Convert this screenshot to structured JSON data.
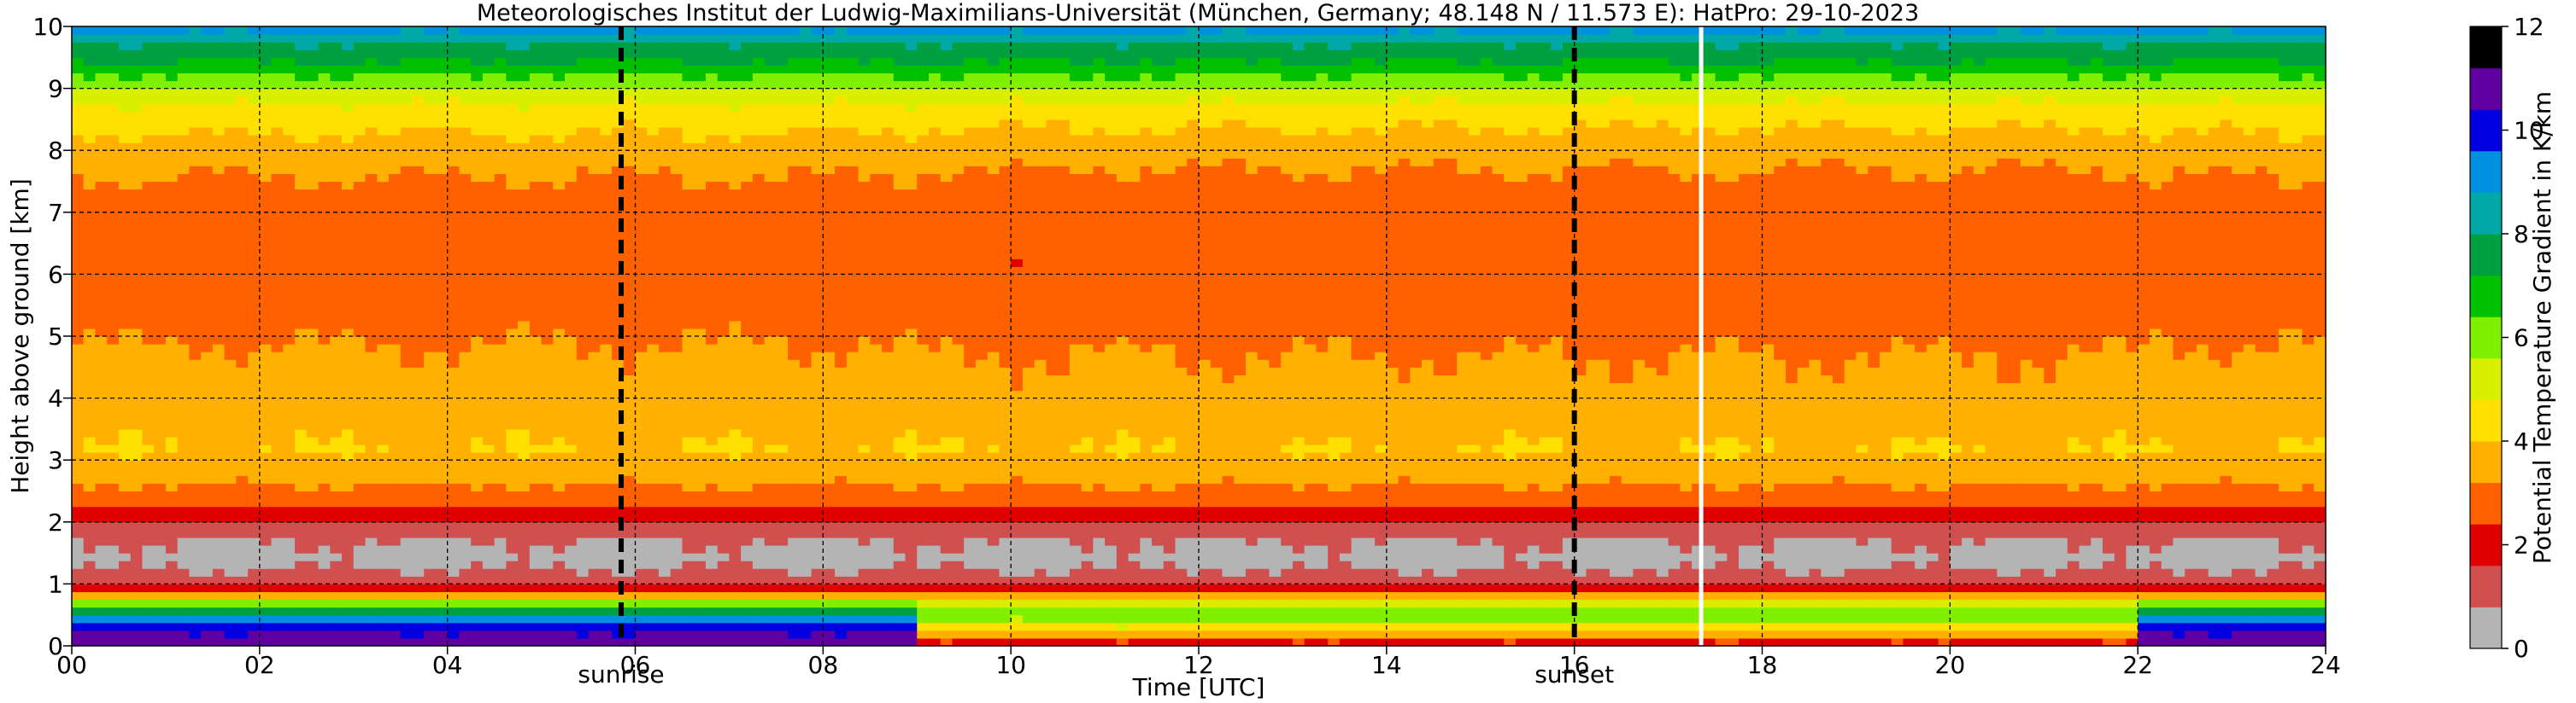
{
  "chart_data": {
    "type": "heatmap",
    "title": "Meteorologisches Institut der Ludwig-Maximilians-Universität (München, Germany; 48.148 N / 11.573 E):    HatPro: 29-10-2023",
    "xlabel": "Time [UTC]",
    "ylabel": "Height above ground [km]",
    "xlim": [
      0,
      24
    ],
    "ylim": [
      0,
      10
    ],
    "x_ticks": [
      0,
      2,
      4,
      6,
      8,
      10,
      12,
      14,
      16,
      18,
      20,
      22,
      24
    ],
    "x_tick_labels": [
      "00",
      "02",
      "04",
      "06",
      "08",
      "10",
      "12",
      "14",
      "16",
      "18",
      "20",
      "22",
      "24"
    ],
    "y_ticks": [
      0,
      1,
      2,
      3,
      4,
      5,
      6,
      7,
      8,
      9,
      10
    ],
    "y_tick_labels": [
      "0",
      "1",
      "2",
      "3",
      "4",
      "5",
      "6",
      "7",
      "8",
      "9",
      "10"
    ],
    "grid": true,
    "colorbar": {
      "label": "Potential Temperature Gradient in K/km",
      "min": 0,
      "max": 12,
      "ticks": [
        0,
        2,
        4,
        6,
        8,
        10,
        12
      ],
      "tick_labels": [
        "0",
        "2",
        "4",
        "6",
        "8",
        "10",
        "12"
      ],
      "colors": [
        "#b4b4b4",
        "#d05050",
        "#e00000",
        "#ff6000",
        "#ffb000",
        "#ffe000",
        "#d8f000",
        "#80f000",
        "#00c000",
        "#00a040",
        "#00a8a8",
        "#0090e0",
        "#0000e0",
        "#6000a0",
        "#000000"
      ]
    },
    "events": [
      {
        "name": "sunrise",
        "time": 5.85
      },
      {
        "name": "sunset",
        "time": 16.0
      }
    ],
    "data_gap_time": 17.35,
    "profile": {
      "heights_km": [
        0.05,
        0.25,
        0.45,
        0.6,
        0.75,
        0.85,
        0.95,
        1.1,
        1.4,
        1.7,
        1.95,
        2.3,
        2.7,
        3.2,
        3.7,
        4.2,
        4.7,
        5.2,
        5.7,
        6.2,
        6.7,
        7.2,
        7.7,
        8.2,
        8.6,
        8.9,
        9.15,
        9.4,
        9.6,
        9.8,
        9.95
      ],
      "night_gradient": [
        11.0,
        10.2,
        9.2,
        7.0,
        5.0,
        3.2,
        1.6,
        0.9,
        0.7,
        0.8,
        1.3,
        2.6,
        3.4,
        4.0,
        3.7,
        3.5,
        3.3,
        3.0,
        2.8,
        2.7,
        2.8,
        2.9,
        3.3,
        3.9,
        4.4,
        5.2,
        6.2,
        7.1,
        7.6,
        8.2,
        9.0
      ],
      "day_gradient": [
        2.2,
        4.2,
        5.8,
        6.1,
        4.2,
        3.0,
        1.6,
        0.9,
        0.7,
        0.8,
        1.3,
        2.6,
        3.4,
        4.0,
        3.6,
        3.4,
        3.2,
        2.9,
        2.7,
        2.6,
        2.7,
        2.8,
        3.2,
        3.8,
        4.3,
        5.2,
        6.2,
        7.1,
        7.6,
        8.2,
        9.0
      ]
    }
  }
}
